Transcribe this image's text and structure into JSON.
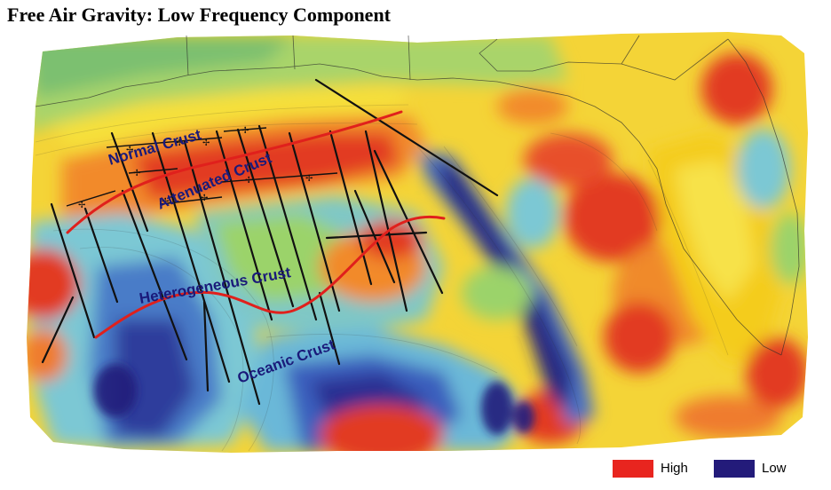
{
  "title": "Free Air Gravity:  Low Frequency Component",
  "regions": {
    "normal": "Normal Crust",
    "attenuated": "Attenuated Crust",
    "heterogeneous": "Heterogeneous Crust",
    "oceanic": "Oceanic Crust"
  },
  "legend": {
    "high_label": "High",
    "high_color": "#e8251f",
    "low_label": "Low",
    "low_color": "#231b7a"
  },
  "palette": {
    "red": "#e53424",
    "orange": "#f08a2c",
    "yellow": "#f6d820",
    "light_yellow": "#f4ee7a",
    "green": "#9bd06a",
    "cyan": "#6fc7d6",
    "blue": "#3a66bf",
    "dark_blue": "#272386",
    "boundary_red": "#e0201c",
    "line_black": "#111111"
  }
}
